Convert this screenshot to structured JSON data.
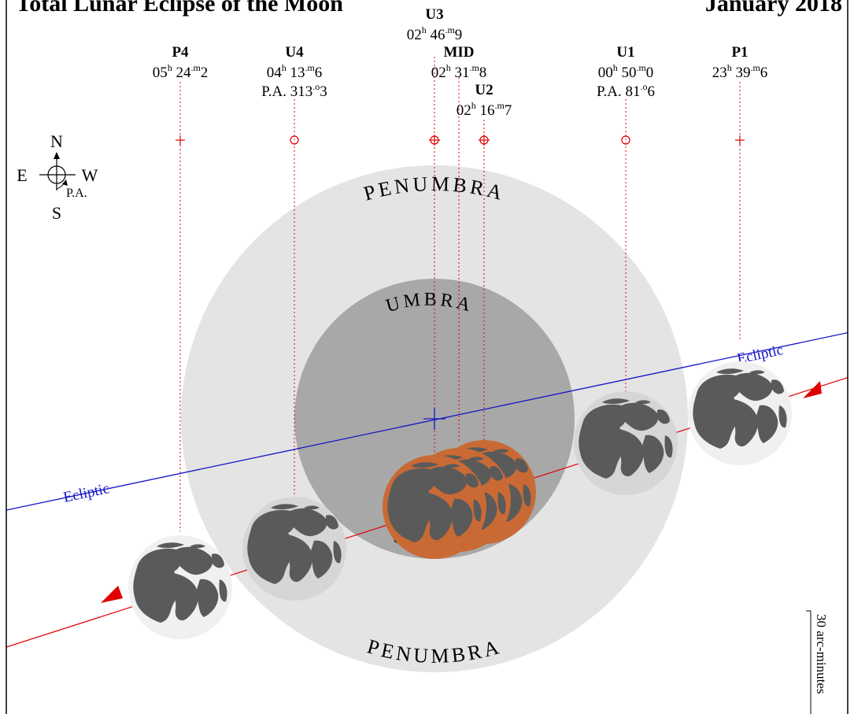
{
  "title": "Total Lunar Eclipse of the Moon",
  "title_right": "January 2018",
  "regions": {
    "penumbra_top": "PENUMBRA",
    "penumbra_bottom": "PENUMBRA",
    "umbra_top": "UMBRA",
    "umbra_bottom": "U"
  },
  "ecliptic_label": "Ecliptic",
  "compass": {
    "north": "N",
    "south": "S",
    "east": "E",
    "west": "W",
    "pa": "P.A."
  },
  "scale_label": "30 arc-minutes",
  "contacts": [
    {
      "id": "P4",
      "time_h": "05",
      "time_m": "24",
      "time_dec": "2"
    },
    {
      "id": "U4",
      "time_h": "04",
      "time_m": "13",
      "time_dec": "6",
      "pa_deg": "313",
      "pa_dec": "3"
    },
    {
      "id": "U3",
      "time_h": "02",
      "time_m": "46",
      "time_dec": "9"
    },
    {
      "id": "MID",
      "time_h": "02",
      "time_m": "31",
      "time_dec": "8"
    },
    {
      "id": "U2",
      "time_h": "02",
      "time_m": "16",
      "time_dec": "7"
    },
    {
      "id": "U1",
      "time_h": "00",
      "time_m": "50",
      "time_dec": "0",
      "pa_deg": "81",
      "pa_dec": "6"
    },
    {
      "id": "P1",
      "time_h": "23",
      "time_m": "39",
      "time_dec": "6"
    }
  ],
  "pa_prefix": "P.A.",
  "colors": {
    "penumbra": "#e4e4e4",
    "umbra": "#a8a8a8",
    "eclipsed_moon": "#c96a35",
    "ecliptic": "#1414c8",
    "moon_path": "#e00000",
    "maria": "#5a5a5a"
  }
}
